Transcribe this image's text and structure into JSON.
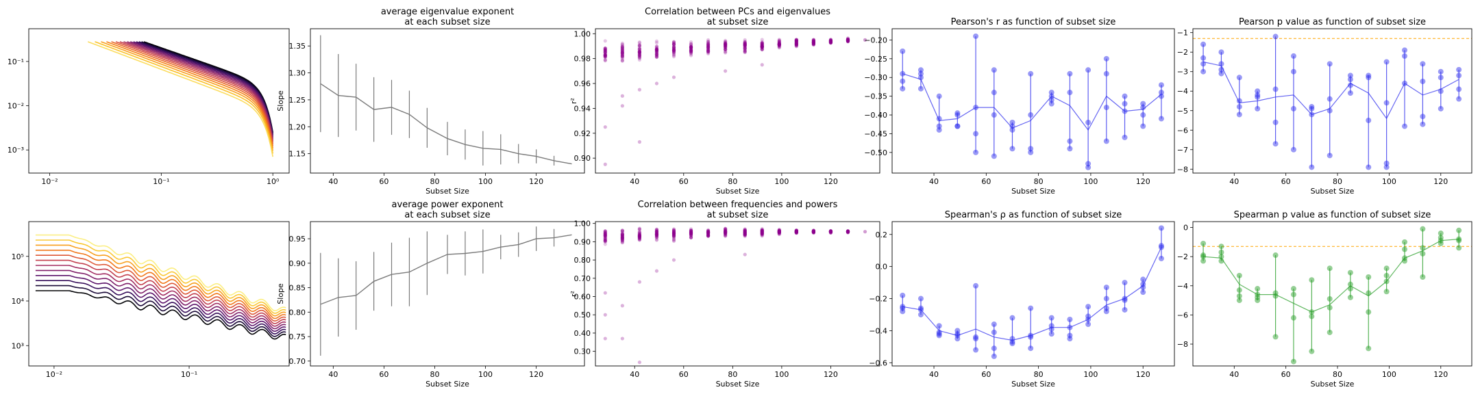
{
  "colors": {
    "mean_line": "#7a7a7a",
    "scatter": "#8b008b",
    "pearson": "#3333ee",
    "pvalue": "#2ca02c",
    "threshold": "#ffa500",
    "spectra_colormap": "inferno"
  },
  "chart_data": [
    {
      "id": "eigen_spectra",
      "type": "line",
      "title": "",
      "xlabel": "",
      "ylabel": "",
      "xscale": "log",
      "yscale": "log",
      "xlim": [
        0.0065,
        1.4
      ],
      "ylim": [
        0.0003,
        0.55
      ],
      "xticks": [
        {
          "v": 0.01,
          "l": "10⁻²"
        },
        {
          "v": 0.1,
          "l": "10⁻¹"
        },
        {
          "v": 1,
          "l": "10⁰"
        }
      ],
      "yticks": [
        {
          "v": 0.001,
          "l": "10⁻³"
        },
        {
          "v": 0.01,
          "l": "10⁻²"
        },
        {
          "v": 0.1,
          "l": "10⁻¹"
        }
      ],
      "n_series": 15,
      "series_form": "y = 0.28 * (x/x0)^-slope, with a steep drop near x = 1",
      "x0_range": [
        0.022,
        0.07
      ],
      "slope_range": [
        1.13,
        1.35
      ]
    },
    {
      "id": "eigen_slope",
      "type": "line",
      "title": "average eigenvalue exponent\nat each subset size",
      "xlabel": "Subset Size",
      "ylabel": "Slope",
      "xlim": [
        31,
        139
      ],
      "ylim": [
        1.114,
        1.382
      ],
      "xticks": [
        40,
        60,
        80,
        100,
        120
      ],
      "yticks": [
        1.15,
        1.2,
        1.25,
        1.3,
        1.35
      ],
      "x": [
        35,
        42,
        49,
        56,
        63,
        70,
        77,
        85,
        92,
        99,
        106,
        113,
        120,
        127,
        134
      ],
      "y": [
        1.28,
        1.258,
        1.255,
        1.232,
        1.236,
        1.223,
        1.198,
        1.178,
        1.167,
        1.16,
        1.158,
        1.15,
        1.145,
        1.137,
        1.131
      ],
      "err": [
        0.09,
        0.077,
        0.062,
        0.06,
        0.051,
        0.044,
        0.037,
        0.031,
        0.028,
        0.032,
        0.028,
        0.018,
        0.013,
        0.009,
        0
      ]
    },
    {
      "id": "eigen_corr",
      "type": "scatter",
      "title": "Correlation between PCs and eigenvalues\nat subset size",
      "xlabel": "Subset Size",
      "ylabel": "r²",
      "xlim": [
        24,
        140
      ],
      "ylim": [
        0.888,
        1.004
      ],
      "xticks": [
        40,
        60,
        80,
        100,
        120
      ],
      "yticks": [
        0.9,
        0.92,
        0.94,
        0.96,
        0.98,
        1.0
      ],
      "x": [
        28,
        35,
        42,
        49,
        56,
        63,
        70,
        77,
        85,
        92,
        99,
        106,
        113,
        120,
        127,
        134
      ],
      "center": [
        0.985,
        0.986,
        0.986,
        0.987,
        0.988,
        0.988,
        0.989,
        0.99,
        0.99,
        0.991,
        0.992,
        0.993,
        0.993,
        0.994,
        0.995,
        0.995
      ],
      "spread": [
        0.01,
        0.009,
        0.009,
        0.008,
        0.008,
        0.007,
        0.007,
        0.006,
        0.006,
        0.005,
        0.004,
        0.004,
        0.003,
        0.002,
        0.002,
        0
      ],
      "low_outliers": [
        [
          28,
          0.895
        ],
        [
          28,
          0.925
        ],
        [
          35,
          0.942
        ],
        [
          35,
          0.95
        ],
        [
          42,
          0.913
        ],
        [
          42,
          0.955
        ],
        [
          49,
          0.96
        ],
        [
          56,
          0.965
        ],
        [
          77,
          0.97
        ],
        [
          92,
          0.975
        ]
      ]
    },
    {
      "id": "eigen_pearson_r",
      "type": "line",
      "title": "Pearson's r as function of subset size",
      "xlabel": "Subset Size",
      "ylabel": "",
      "xlim": [
        24,
        132
      ],
      "ylim": [
        -0.555,
        -0.17
      ],
      "xticks": [
        40,
        60,
        80,
        100,
        120
      ],
      "yticks": [
        -0.5,
        -0.45,
        -0.4,
        -0.35,
        -0.3,
        -0.25,
        -0.2
      ],
      "x": [
        28,
        35,
        42,
        49,
        56,
        63,
        70,
        77,
        85,
        92,
        99,
        106,
        113,
        120,
        127
      ],
      "mean": [
        -0.29,
        -0.305,
        -0.415,
        -0.41,
        -0.38,
        -0.38,
        -0.435,
        -0.415,
        -0.35,
        -0.375,
        -0.44,
        -0.35,
        -0.39,
        -0.385,
        -0.345
      ],
      "points": [
        [
          -0.23,
          -0.31,
          -0.33,
          -0.29
        ],
        [
          -0.28,
          -0.33,
          -0.3,
          -0.29
        ],
        [
          -0.35,
          -0.44,
          -0.41,
          -0.43
        ],
        [
          -0.4,
          -0.43,
          -0.43,
          -0.395
        ],
        [
          -0.19,
          -0.5,
          -0.45,
          -0.38
        ],
        [
          -0.34,
          -0.51,
          -0.4,
          -0.28
        ],
        [
          -0.42,
          -0.49,
          -0.44,
          -0.43
        ],
        [
          -0.29,
          -0.5,
          -0.49,
          -0.4
        ],
        [
          -0.34,
          -0.36,
          -0.37,
          -0.35
        ],
        [
          -0.47,
          -0.49,
          -0.34,
          -0.29
        ],
        [
          -0.28,
          -0.53,
          -0.54,
          -0.42
        ],
        [
          -0.25,
          -0.47,
          -0.29,
          -0.38
        ],
        [
          -0.46,
          -0.37,
          -0.35,
          -0.39
        ],
        [
          -0.37,
          -0.43,
          -0.38,
          -0.4
        ],
        [
          -0.32,
          -0.41,
          -0.35,
          -0.34
        ]
      ]
    },
    {
      "id": "eigen_pearson_p",
      "type": "line",
      "title": "Pearson p value as function of subset size",
      "xlabel": "Subset Size",
      "ylabel": "",
      "xlim": [
        24,
        132
      ],
      "ylim": [
        -8.2,
        -0.8
      ],
      "xticks": [
        40,
        60,
        80,
        100,
        120
      ],
      "yticks": [
        -8,
        -7,
        -6,
        -5,
        -4,
        -3,
        -2,
        -1
      ],
      "threshold": -1.3,
      "x": [
        28,
        35,
        42,
        49,
        56,
        63,
        70,
        77,
        85,
        92,
        99,
        106,
        113,
        120,
        127
      ],
      "mean": [
        -2.5,
        -2.7,
        -4.6,
        -4.5,
        -4.3,
        -4.2,
        -5.2,
        -4.9,
        -3.6,
        -4.1,
        -5.4,
        -3.6,
        -4.2,
        -3.9,
        -3.4
      ],
      "points": [
        [
          -1.6,
          -2.3,
          -2.6,
          -3.0
        ],
        [
          -2.0,
          -2.6,
          -3.1,
          -2.9
        ],
        [
          -3.3,
          -4.5,
          -5.2,
          -4.8
        ],
        [
          -4.0,
          -4.9,
          -4.2,
          -4.3
        ],
        [
          -1.2,
          -6.7,
          -5.6,
          -3.9
        ],
        [
          -3.0,
          -7.0,
          -4.9,
          -2.2
        ],
        [
          -4.9,
          -7.9,
          -5.2,
          -4.8
        ],
        [
          -2.6,
          -7.3,
          -5.0,
          -4.4
        ],
        [
          -3.2,
          -3.7,
          -4.1,
          -3.4
        ],
        [
          -7.9,
          -5.5,
          -3.3,
          -3.2
        ],
        [
          -2.5,
          -7.7,
          -7.9,
          -4.6
        ],
        [
          -1.9,
          -5.8,
          -2.2,
          -3.6
        ],
        [
          -5.7,
          -5.3,
          -3.5,
          -2.6
        ],
        [
          -3.0,
          -3.3,
          -4.9,
          -4.0
        ],
        [
          -2.9,
          -4.4,
          -3.9,
          -3.2
        ]
      ]
    },
    {
      "id": "power_spectra",
      "type": "line",
      "title": "",
      "xlabel": "",
      "ylabel": "",
      "xscale": "log",
      "yscale": "log",
      "xlim": [
        0.0065,
        0.55
      ],
      "ylim": [
        350,
        600000
      ],
      "xticks": [
        {
          "v": 0.01,
          "l": "10⁻²"
        },
        {
          "v": 0.1,
          "l": "10⁻¹"
        }
      ],
      "yticks": [
        {
          "v": 1000,
          "l": "10³"
        },
        {
          "v": 10000,
          "l": "10⁴"
        },
        {
          "v": 100000,
          "l": "10⁵"
        }
      ],
      "n_series": 12,
      "series_form": "flat until x0 then decreasing power law with oscillations",
      "level_range": [
        17000,
        300000
      ],
      "end_range": [
        1500,
        6000
      ]
    },
    {
      "id": "power_slope",
      "type": "line",
      "title": "average power exponent\nat each subset size",
      "xlabel": "Subset Size",
      "ylabel": "Slope",
      "xlim": [
        31,
        139
      ],
      "ylim": [
        0.69,
        0.985
      ],
      "xticks": [
        40,
        60,
        80,
        100,
        120
      ],
      "yticks": [
        0.7,
        0.75,
        0.8,
        0.85,
        0.9,
        0.95
      ],
      "x": [
        35,
        42,
        49,
        56,
        63,
        70,
        77,
        85,
        92,
        99,
        106,
        113,
        120,
        127,
        134
      ],
      "y": [
        0.816,
        0.83,
        0.834,
        0.863,
        0.877,
        0.882,
        0.9,
        0.918,
        0.92,
        0.924,
        0.933,
        0.938,
        0.95,
        0.952,
        0.958
      ],
      "err": [
        0.105,
        0.08,
        0.07,
        0.06,
        0.065,
        0.07,
        0.065,
        0.04,
        0.045,
        0.045,
        0.025,
        0.025,
        0.025,
        0.018,
        0
      ]
    },
    {
      "id": "power_corr",
      "type": "scatter",
      "title": "Correlation between frequencies and powers\nat subset size",
      "xlabel": "Subset Size",
      "ylabel": "r²",
      "xlim": [
        24,
        140
      ],
      "ylim": [
        0.22,
        1.01
      ],
      "xticks": [
        40,
        60,
        80,
        100,
        120
      ],
      "yticks": [
        0.3,
        0.4,
        0.5,
        0.6,
        0.7,
        0.8,
        0.9,
        1.0
      ],
      "x": [
        28,
        35,
        42,
        49,
        56,
        63,
        70,
        77,
        85,
        92,
        99,
        106,
        113,
        120,
        127,
        134
      ],
      "center": [
        0.93,
        0.93,
        0.935,
        0.94,
        0.94,
        0.945,
        0.945,
        0.95,
        0.95,
        0.95,
        0.955,
        0.955,
        0.955,
        0.955,
        0.955,
        0.955
      ],
      "spread": [
        0.05,
        0.05,
        0.045,
        0.04,
        0.04,
        0.035,
        0.03,
        0.03,
        0.025,
        0.02,
        0.015,
        0.012,
        0.01,
        0.008,
        0.005,
        0
      ],
      "low_outliers": [
        [
          28,
          0.37
        ],
        [
          35,
          0.37
        ],
        [
          42,
          0.24
        ],
        [
          28,
          0.5
        ],
        [
          28,
          0.62
        ],
        [
          35,
          0.55
        ],
        [
          42,
          0.68
        ],
        [
          49,
          0.74
        ],
        [
          56,
          0.8
        ],
        [
          85,
          0.83
        ]
      ]
    },
    {
      "id": "power_spearman_rho",
      "type": "line",
      "title": "Spearman's ρ as function of subset size",
      "xlabel": "Subset Size",
      "ylabel": "",
      "xlim": [
        24,
        132
      ],
      "ylim": [
        -0.62,
        0.28
      ],
      "xticks": [
        40,
        60,
        80,
        100,
        120
      ],
      "yticks": [
        -0.6,
        -0.4,
        -0.2,
        0.0,
        0.2
      ],
      "x": [
        28,
        35,
        42,
        49,
        56,
        63,
        70,
        77,
        85,
        92,
        99,
        106,
        113,
        120,
        127
      ],
      "mean": [
        -0.25,
        -0.27,
        -0.4,
        -0.43,
        -0.39,
        -0.44,
        -0.46,
        -0.43,
        -0.38,
        -0.38,
        -0.33,
        -0.24,
        -0.2,
        -0.12,
        0.12
      ],
      "points": [
        [
          -0.18,
          -0.26,
          -0.28,
          -0.25
        ],
        [
          -0.2,
          -0.26,
          -0.3,
          -0.27
        ],
        [
          -0.37,
          -0.43,
          -0.42,
          -0.41
        ],
        [
          -0.4,
          -0.43,
          -0.45,
          -0.42
        ],
        [
          -0.12,
          -0.45,
          -0.52,
          -0.44
        ],
        [
          -0.36,
          -0.56,
          -0.51,
          -0.41
        ],
        [
          -0.32,
          -0.47,
          -0.48,
          -0.45
        ],
        [
          -0.26,
          -0.51,
          -0.44,
          -0.43
        ],
        [
          -0.32,
          -0.39,
          -0.42,
          -0.37
        ],
        [
          -0.33,
          -0.45,
          -0.43,
          -0.38
        ],
        [
          -0.25,
          -0.36,
          -0.33,
          -0.31
        ],
        [
          -0.13,
          -0.28,
          -0.26,
          -0.2
        ],
        [
          -0.1,
          -0.27,
          -0.2,
          -0.21
        ],
        [
          -0.08,
          -0.16,
          -0.13,
          -0.11
        ],
        [
          0.24,
          0.05,
          0.12,
          0.13
        ]
      ]
    },
    {
      "id": "power_spearman_p",
      "type": "line",
      "title": "Spearman p value as function of subset size",
      "xlabel": "Subset Size",
      "ylabel": "",
      "xlim": [
        24,
        132
      ],
      "ylim": [
        -9.5,
        0.4
      ],
      "xticks": [
        40,
        60,
        80,
        100,
        120
      ],
      "yticks": [
        -8,
        -6,
        -4,
        -2,
        0
      ],
      "threshold": -1.3,
      "x": [
        28,
        35,
        42,
        49,
        56,
        63,
        70,
        77,
        85,
        92,
        99,
        106,
        113,
        120,
        127
      ],
      "mean": [
        -2.0,
        -2.1,
        -3.9,
        -4.6,
        -4.6,
        -5.2,
        -5.8,
        -5.3,
        -4.0,
        -4.7,
        -3.7,
        -2.1,
        -1.6,
        -0.9,
        -0.8
      ],
      "points": [
        [
          -1.1,
          -1.9,
          -2.3,
          -2.0
        ],
        [
          -1.3,
          -2.0,
          -2.3,
          -1.7
        ],
        [
          -3.3,
          -4.7,
          -5.0,
          -4.3
        ],
        [
          -4.2,
          -4.8,
          -5.0,
          -4.6
        ],
        [
          -1.9,
          -4.7,
          -7.5,
          -4.5
        ],
        [
          -4.6,
          -9.2,
          -6.2,
          -4.2
        ],
        [
          -3.6,
          -8.5,
          -6.1,
          -5.8
        ],
        [
          -2.8,
          -7.2,
          -5.5,
          -4.9
        ],
        [
          -3.1,
          -4.2,
          -4.8,
          -3.9
        ],
        [
          -3.4,
          -8.3,
          -5.8,
          -4.5
        ],
        [
          -2.8,
          -4.4,
          -3.7,
          -3.3
        ],
        [
          -1.0,
          -2.3,
          -2.1,
          -1.5
        ],
        [
          -0.1,
          -3.4,
          -1.8,
          -1.4
        ],
        [
          -0.4,
          -1.1,
          -0.9,
          -0.7
        ],
        [
          -0.2,
          -1.4,
          -0.8,
          -0.9
        ]
      ]
    }
  ]
}
